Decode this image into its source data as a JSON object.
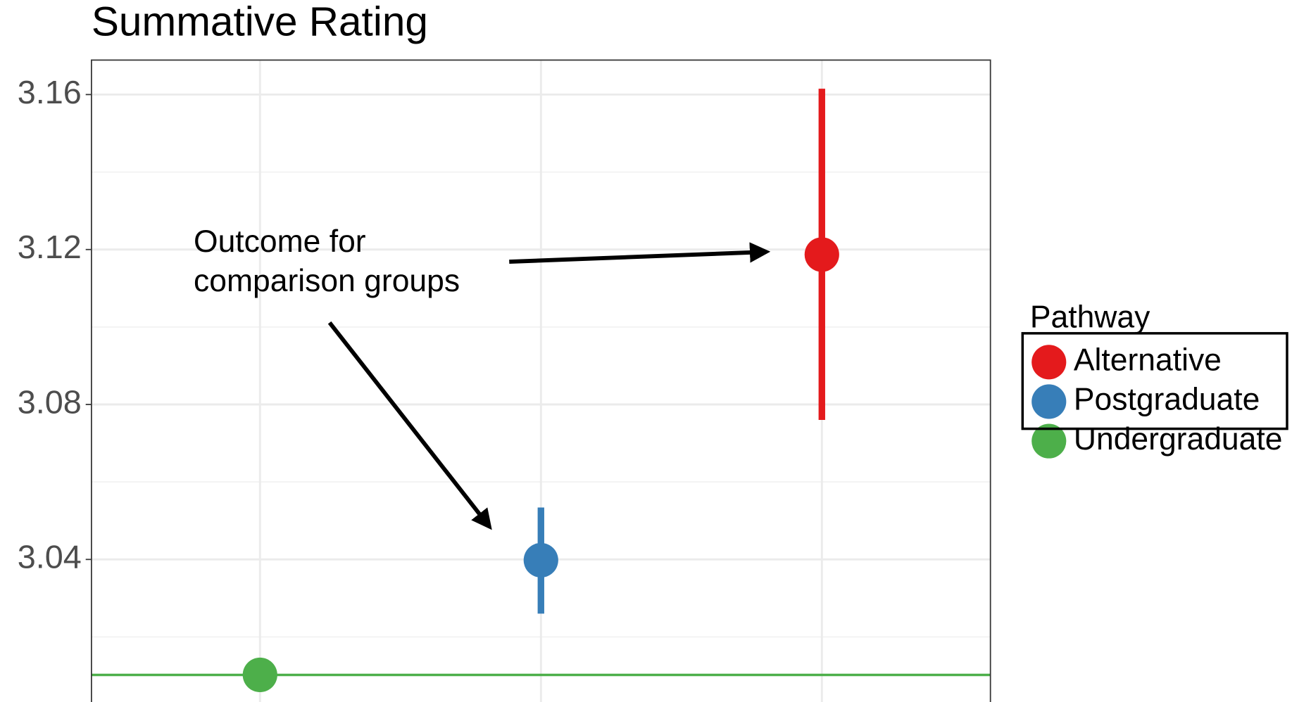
{
  "chart_data": {
    "type": "pointrange",
    "title": "Summative Rating",
    "categories": [
      null,
      null,
      null
    ],
    "ylim": [
      3.0032,
      3.1689
    ],
    "yticks": [
      3.04,
      3.08,
      3.12,
      3.16
    ],
    "minor_yticks": [
      3.02,
      3.06,
      3.1,
      3.14
    ],
    "grid": true,
    "legend": {
      "title": "Pathway",
      "position": "right"
    },
    "series": [
      {
        "name": "Alternative",
        "color": "#e41a1c",
        "values": [
          null,
          null,
          3.1187
        ],
        "lower": [
          null,
          null,
          3.076
        ],
        "upper": [
          null,
          null,
          3.1615
        ]
      },
      {
        "name": "Postgraduate",
        "color": "#377eb8",
        "values": [
          null,
          3.0398,
          null
        ],
        "lower": [
          null,
          3.026,
          null
        ],
        "upper": [
          null,
          3.0534,
          null
        ]
      },
      {
        "name": "Undergraduate",
        "color": "#4daf4a",
        "values": [
          3.0102,
          null,
          null
        ],
        "lower": [
          null,
          null,
          null
        ],
        "upper": [
          null,
          null,
          null
        ]
      }
    ],
    "hline": {
      "value": 3.0102,
      "color": "#4daf4a"
    },
    "annotation": [
      "Outcome for",
      "comparison groups"
    ]
  }
}
